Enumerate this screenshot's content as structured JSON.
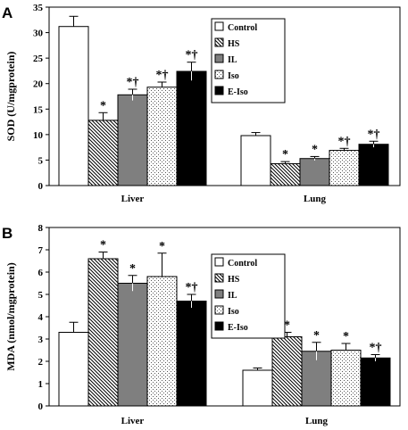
{
  "chart_data": [
    {
      "type": "bar",
      "panel_label": "A",
      "ylabel": "SOD (U/mgprotein)",
      "ylim": [
        0,
        35
      ],
      "yticks": [
        0,
        5,
        10,
        15,
        20,
        25,
        30,
        35
      ],
      "categories": [
        "Liver",
        "Lung"
      ],
      "legend_position": "right",
      "series": [
        {
          "name": "Control",
          "pattern": "white",
          "values": [
            31.2,
            9.8
          ],
          "errors": [
            2.0,
            0.6
          ],
          "marks": [
            "",
            ""
          ]
        },
        {
          "name": "HS",
          "pattern": "diagonal",
          "values": [
            12.8,
            4.3
          ],
          "errors": [
            1.5,
            0.4
          ],
          "marks": [
            "*",
            "*"
          ]
        },
        {
          "name": "IL",
          "pattern": "gray",
          "values": [
            17.8,
            5.3
          ],
          "errors": [
            1.1,
            0.4
          ],
          "marks": [
            "*†",
            "*"
          ]
        },
        {
          "name": "Iso",
          "pattern": "dotted",
          "values": [
            19.3,
            6.9
          ],
          "errors": [
            1.0,
            0.4
          ],
          "marks": [
            "*†",
            "*†"
          ]
        },
        {
          "name": "E-Iso",
          "pattern": "black",
          "values": [
            22.4,
            8.1
          ],
          "errors": [
            1.8,
            0.6
          ],
          "marks": [
            "*†",
            "*†"
          ]
        }
      ]
    },
    {
      "type": "bar",
      "panel_label": "B",
      "ylabel": "MDA (nmol/mgprotein)",
      "ylim": [
        0,
        8
      ],
      "yticks": [
        0,
        1,
        2,
        3,
        4,
        5,
        6,
        7,
        8
      ],
      "categories": [
        "Liver",
        "Lung"
      ],
      "legend_position": "right",
      "series": [
        {
          "name": "Control",
          "pattern": "white",
          "values": [
            3.3,
            1.6
          ],
          "errors": [
            0.45,
            0.1
          ],
          "marks": [
            "",
            ""
          ]
        },
        {
          "name": "HS",
          "pattern": "diagonal",
          "values": [
            6.6,
            3.1
          ],
          "errors": [
            0.3,
            0.2
          ],
          "marks": [
            "*",
            "*"
          ]
        },
        {
          "name": "IL",
          "pattern": "gray",
          "values": [
            5.5,
            2.45
          ],
          "errors": [
            0.35,
            0.4
          ],
          "marks": [
            "*",
            "*"
          ]
        },
        {
          "name": "Iso",
          "pattern": "dotted",
          "values": [
            5.8,
            2.5
          ],
          "errors": [
            1.05,
            0.3
          ],
          "marks": [
            "*",
            "*"
          ]
        },
        {
          "name": "E-Iso",
          "pattern": "black",
          "values": [
            4.7,
            2.15
          ],
          "errors": [
            0.3,
            0.15
          ],
          "marks": [
            "*†",
            "*†"
          ]
        }
      ]
    }
  ]
}
